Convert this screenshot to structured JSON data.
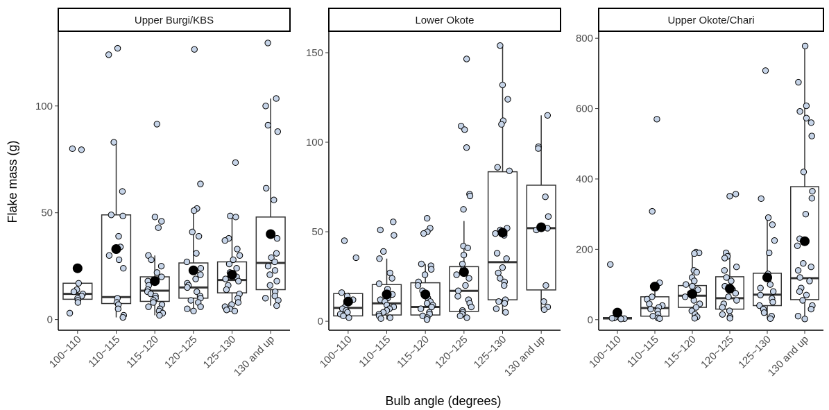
{
  "chart_data": {
    "type": "boxplot",
    "xlabel": "Bulb angle (degrees)",
    "ylabel": "Flake mass (g)",
    "categories": [
      "100~110",
      "110~115",
      "115~120",
      "120~125",
      "125~130",
      "130 and up"
    ],
    "grid": false,
    "colors": {
      "point_fill": "#c6d4e8",
      "point_stroke": "#000000",
      "box_stroke": "#333333",
      "median": "#333333",
      "mean": "#000000"
    },
    "panels": [
      {
        "title": "Upper Burgi/KBS",
        "ylim": [
          -5,
          135
        ],
        "yticks": [
          0,
          50,
          100
        ],
        "boxes": [
          {
            "category": "100~110",
            "min": 9.5,
            "q1": 9.5,
            "median": 12,
            "q3": 17,
            "max": 17,
            "mean": 24,
            "points": [
              80,
              79.5,
              17,
              14,
              13,
              12,
              11,
              10,
              9,
              8,
              3
            ]
          },
          {
            "category": "110~115",
            "min": 1,
            "q1": 7.5,
            "median": 10.5,
            "q3": 49,
            "max": 83,
            "mean": 33,
            "points": [
              127,
              124,
              83,
              60,
              49,
              48.5,
              39,
              34,
              30,
              28,
              24,
              10,
              8,
              7,
              5,
              2,
              1
            ]
          },
          {
            "category": "115~120",
            "min": 2,
            "q1": 8.5,
            "median": 13.5,
            "q3": 20,
            "max": 30,
            "mean": 18,
            "points": [
              91.5,
              48,
              46,
              43,
              30,
              28,
              25,
              22,
              20,
              18,
              16,
              14,
              13,
              12,
              11,
              10,
              9,
              8,
              7,
              6,
              5,
              4,
              3,
              2
            ]
          },
          {
            "category": "120~125",
            "min": 4,
            "q1": 10,
            "median": 15,
            "q3": 26.5,
            "max": 52,
            "mean": 23,
            "points": [
              126.5,
              63.5,
              52,
              51,
              41,
              39,
              31,
              27,
              24,
              21,
              19,
              17,
              16,
              15,
              13,
              11,
              10,
              9,
              8,
              6,
              5,
              4
            ]
          },
          {
            "category": "125~130",
            "min": 4,
            "q1": 12.5,
            "median": 18.5,
            "q3": 27,
            "max": 48,
            "mean": 21,
            "points": [
              73.5,
              48.5,
              48,
              38,
              37,
              33,
              30,
              28,
              26,
              24,
              22,
              20,
              19,
              18,
              16,
              14,
              12,
              10,
              8,
              7,
              6,
              5,
              4,
              4.5
            ]
          },
          {
            "category": "130 and up",
            "min": 6.5,
            "q1": 14,
            "median": 26.5,
            "q3": 48,
            "max": 103.5,
            "mean": 40,
            "points": [
              129.5,
              103.5,
              100,
              91,
              88,
              61.5,
              56,
              40,
              39.5,
              38,
              31,
              29,
              27,
              25,
              23,
              21,
              18,
              16,
              13,
              11,
              10,
              9,
              6.5
            ]
          }
        ]
      },
      {
        "title": "Lower Okote",
        "ylim": [
          -5,
          162
        ],
        "yticks": [
          0,
          50,
          100,
          150
        ],
        "boxes": [
          {
            "category": "100~110",
            "min": 2,
            "q1": 3,
            "median": 7.5,
            "q3": 15.5,
            "max": 16,
            "mean": 11,
            "points": [
              45,
              35.5,
              16,
              14,
              12,
              10,
              8,
              7,
              6,
              5,
              4,
              3,
              2
            ]
          },
          {
            "category": "110~115",
            "min": 1,
            "q1": 3.5,
            "median": 10,
            "q3": 20.5,
            "max": 35,
            "mean": 15,
            "points": [
              55.5,
              51,
              48,
              39,
              35,
              27,
              24,
              21,
              18,
              15,
              13,
              12,
              11,
              9,
              8,
              7,
              6,
              5,
              4,
              3,
              2,
              1.5
            ]
          },
          {
            "category": "115~120",
            "min": 1,
            "q1": 3.5,
            "median": 8,
            "q3": 21.5,
            "max": 32,
            "mean": 15,
            "points": [
              57.5,
              52,
              50,
              49,
              32,
              31,
              29,
              26,
              22,
              20,
              17,
              15,
              13,
              11,
              10,
              9,
              8,
              7,
              5,
              4,
              3,
              2,
              1
            ]
          },
          {
            "category": "120~125",
            "min": 2,
            "q1": 5.5,
            "median": 17,
            "q3": 30.5,
            "max": 56,
            "mean": 27.5,
            "points": [
              146.5,
              109,
              107,
              97,
              71,
              70,
              62.5,
              42,
              41,
              37,
              32,
              29,
              26,
              24,
              20,
              17,
              14,
              12,
              10,
              8,
              6,
              5,
              4,
              3,
              2
            ]
          },
          {
            "category": "125~130",
            "min": 4,
            "q1": 12,
            "median": 33,
            "q3": 83.5,
            "max": 154,
            "mean": 49.5,
            "points": [
              154,
              132,
              124,
              112,
              110,
              86,
              84,
              52,
              51,
              50,
              49,
              48,
              38,
              35,
              30,
              27,
              24,
              22,
              20,
              12,
              11,
              10,
              7,
              5
            ]
          },
          {
            "category": "130 and up",
            "min": 6.5,
            "q1": 17.5,
            "median": 52,
            "q3": 76,
            "max": 115,
            "mean": 52.5,
            "points": [
              115,
              97.5,
              96.5,
              69.5,
              58.5,
              52,
              51,
              20,
              11,
              8,
              6.5
            ]
          }
        ]
      },
      {
        "title": "Upper Okote/Chari",
        "ylim": [
          -30,
          820
        ],
        "yticks": [
          0,
          200,
          400,
          600,
          800
        ],
        "boxes": [
          {
            "category": "100~110",
            "min": 2,
            "q1": 2,
            "median": 4,
            "q3": 6,
            "max": 8,
            "mean": 20,
            "points": [
              157,
              6,
              5,
              4,
              3,
              2
            ]
          },
          {
            "category": "110~115",
            "min": 2,
            "q1": 10,
            "median": 33,
            "q3": 65,
            "max": 105,
            "mean": 94,
            "points": [
              570,
              308,
              105,
              95,
              65,
              58,
              45,
              40,
              35,
              30,
              25,
              15,
              10,
              5,
              3
            ]
          },
          {
            "category": "115~120",
            "min": 2,
            "q1": 35,
            "median": 68,
            "q3": 97,
            "max": 192,
            "mean": 73,
            "points": [
              192,
              190,
              188,
              140,
              135,
              120,
              110,
              100,
              95,
              85,
              75,
              65,
              55,
              45,
              35,
              25,
              15,
              8,
              4
            ]
          },
          {
            "category": "120~125",
            "min": 2,
            "q1": 30,
            "median": 61,
            "q3": 122,
            "max": 190,
            "mean": 88,
            "points": [
              357,
              351,
              190,
              180,
              175,
              150,
              140,
              120,
              110,
              95,
              85,
              75,
              65,
              55,
              45,
              35,
              25,
              15,
              8,
              4
            ]
          },
          {
            "category": "125~130",
            "min": 2,
            "q1": 40,
            "median": 71,
            "q3": 132,
            "max": 290,
            "mean": 120,
            "points": [
              708,
              344,
              290,
              270,
              225,
              190,
              130,
              125,
              115,
              100,
              90,
              80,
              70,
              60,
              50,
              40,
              30,
              20,
              10,
              3
            ]
          },
          {
            "category": "130 and up",
            "min": 2,
            "q1": 57,
            "median": 118,
            "q3": 378,
            "max": 778,
            "mean": 223,
            "points": [
              778,
              675,
              608,
              592,
              573,
              560,
              522,
              420,
              365,
              345,
              300,
              230,
              210,
              160,
              150,
              140,
              120,
              110,
              90,
              80,
              70,
              55,
              40,
              30,
              10,
              2
            ]
          }
        ]
      }
    ]
  }
}
